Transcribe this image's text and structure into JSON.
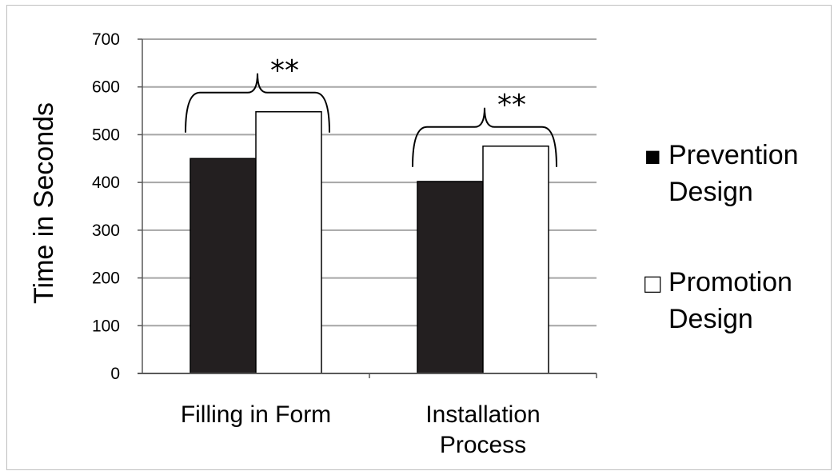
{
  "chart_data": {
    "type": "bar",
    "ylabel": "Time in  Seconds",
    "xlabel": "",
    "ylim": [
      0,
      700
    ],
    "yticks": [
      0,
      100,
      200,
      300,
      400,
      500,
      600,
      700
    ],
    "grid": true,
    "legend_position": "right",
    "categories": [
      [
        "Filling in Form"
      ],
      [
        "Installation",
        "Process"
      ]
    ],
    "series": [
      {
        "name": [
          "Prevention",
          "Design"
        ],
        "values": [
          450,
          402
        ],
        "color": "#231f20",
        "legend_marker": "■"
      },
      {
        "name": [
          "Promotion",
          "Design"
        ],
        "values": [
          548,
          476
        ],
        "color": "#ffffff",
        "legend_marker": "□"
      }
    ],
    "annotations": [
      {
        "category": 0,
        "text": "**"
      },
      {
        "category": 1,
        "text": "**"
      }
    ]
  }
}
